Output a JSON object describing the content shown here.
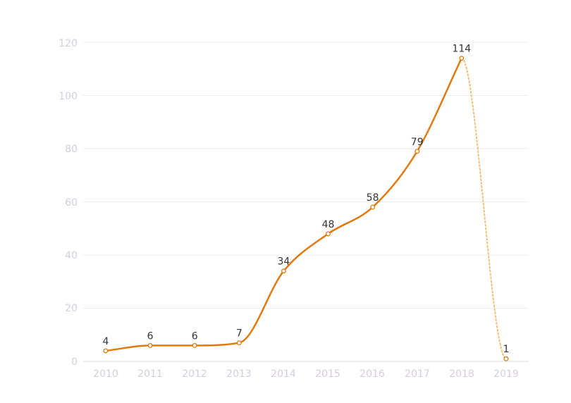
{
  "chart_data": {
    "type": "line",
    "categories": [
      "2010",
      "2011",
      "2012",
      "2013",
      "2014",
      "2015",
      "2016",
      "2017",
      "2018",
      "2019"
    ],
    "values": [
      4,
      6,
      6,
      7,
      34,
      48,
      58,
      79,
      114,
      1
    ],
    "data_labels": [
      "4",
      "6",
      "6",
      "7",
      "34",
      "48",
      "58",
      "79",
      "114",
      "1"
    ],
    "y_ticks": [
      "0",
      "20",
      "40",
      "60",
      "80",
      "100",
      "120"
    ],
    "ylim": [
      0,
      120
    ],
    "dashed_last_segment": true,
    "grid": true,
    "legend": "none",
    "title": "",
    "xlabel": "",
    "ylabel": "",
    "colors": {
      "line": "#e07a10",
      "dashed": "#f0c07a",
      "marker_fill": "#ffffff",
      "grid": "#eeeeee",
      "axis_text": "#d7ccdc",
      "label_text": "#333333"
    }
  }
}
